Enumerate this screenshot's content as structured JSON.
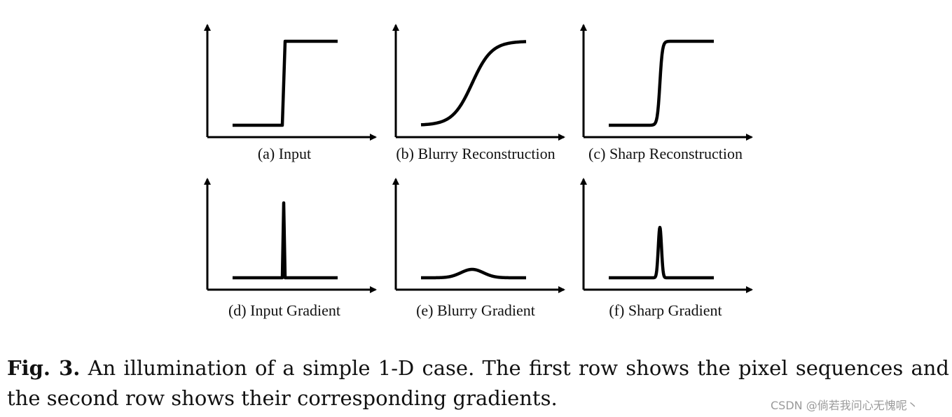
{
  "figure": {
    "panels": [
      {
        "label": "(a) Input",
        "row": 0,
        "col": 0,
        "kind": "step",
        "sharpness": "step"
      },
      {
        "label": "(b) Blurry Reconstruction",
        "row": 0,
        "col": 1,
        "kind": "step",
        "sharpness": "blurry"
      },
      {
        "label": "(c) Sharp Reconstruction",
        "row": 0,
        "col": 2,
        "kind": "step",
        "sharpness": "sharp"
      },
      {
        "label": "(d) Input Gradient",
        "row": 1,
        "col": 0,
        "kind": "gradient",
        "sharpness": "step"
      },
      {
        "label": "(e) Blurry Gradient",
        "row": 1,
        "col": 1,
        "kind": "gradient",
        "sharpness": "blurry"
      },
      {
        "label": "(f) Sharp Gradient",
        "row": 1,
        "col": 2,
        "kind": "gradient",
        "sharpness": "sharp"
      }
    ]
  },
  "caption": {
    "label": "Fig. 3.",
    "text": " An illumination of a simple 1-D case. The first row shows the pixel sequences and the second row shows their corresponding gradients."
  },
  "credit": "CSDN @倘若我问心无愧呢丶"
}
